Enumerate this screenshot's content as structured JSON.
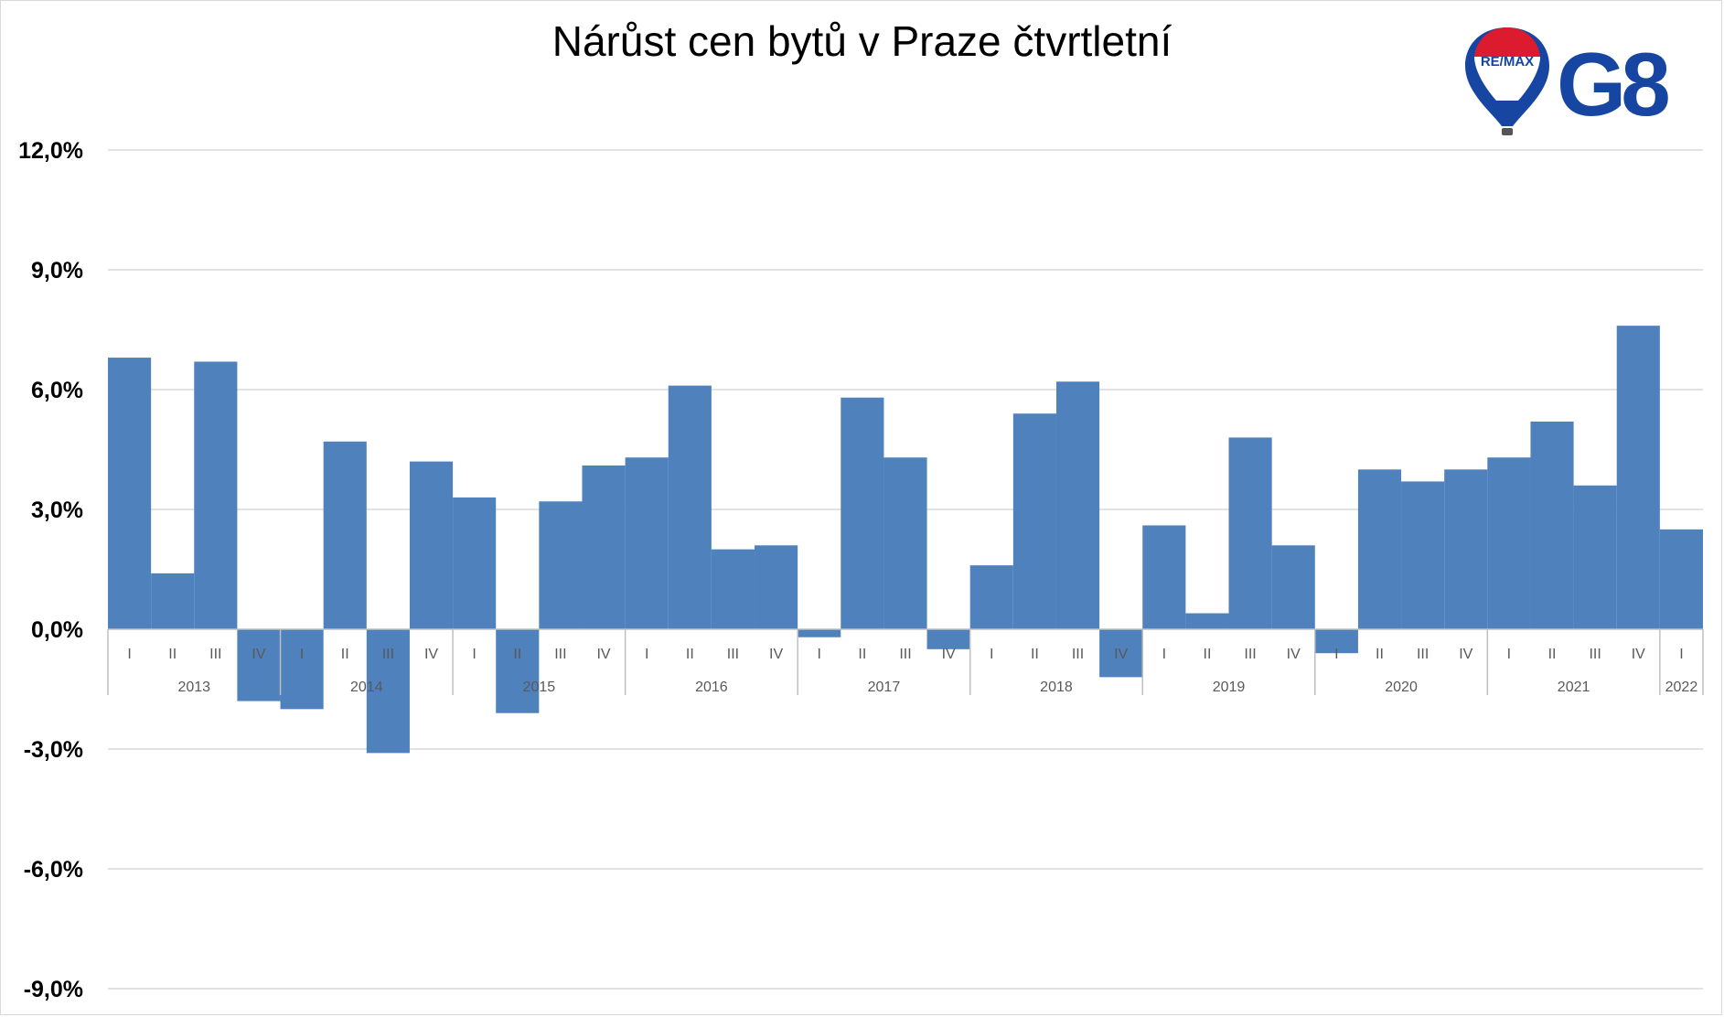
{
  "title": "Nárůst cen bytů v Praze čtvrtletní",
  "logo": {
    "brand_text": "RE/MAX",
    "office_text": "G8",
    "icon": "hot-air-balloon-icon"
  },
  "colors": {
    "bar": "#4f81bd",
    "grid": "#d9d9d9",
    "axis": "#bfbfbf",
    "logo_blue": "#1746a2",
    "logo_red": "#dc1c2e"
  },
  "chart_data": {
    "type": "bar",
    "title": "Nárůst cen bytů v Praze čtvrtletní",
    "xlabel": "",
    "ylabel": "",
    "ylim": [
      -9,
      12
    ],
    "yticks": [
      12,
      9,
      6,
      3,
      0,
      -3,
      -6,
      -9
    ],
    "ytick_labels": [
      "12,0%",
      "9,0%",
      "6,0%",
      "3,0%",
      "0,0%",
      "-3,0%",
      "-6,0%",
      "-9,0%"
    ],
    "grid": true,
    "legend": "none",
    "years": [
      {
        "label": "2013",
        "quarters": [
          "I",
          "II",
          "III",
          "IV"
        ]
      },
      {
        "label": "2014",
        "quarters": [
          "I",
          "II",
          "III",
          "IV"
        ]
      },
      {
        "label": "2015",
        "quarters": [
          "I",
          "II",
          "III",
          "IV"
        ]
      },
      {
        "label": "2016",
        "quarters": [
          "I",
          "II",
          "III",
          "IV"
        ]
      },
      {
        "label": "2017",
        "quarters": [
          "I",
          "II",
          "III",
          "IV"
        ]
      },
      {
        "label": "2018",
        "quarters": [
          "I",
          "II",
          "III",
          "IV"
        ]
      },
      {
        "label": "2019",
        "quarters": [
          "I",
          "II",
          "III",
          "IV"
        ]
      },
      {
        "label": "2020",
        "quarters": [
          "I",
          "II",
          "III",
          "IV"
        ]
      },
      {
        "label": "2021",
        "quarters": [
          "I",
          "II",
          "III",
          "IV"
        ]
      },
      {
        "label": "2022",
        "quarters": [
          "I"
        ]
      }
    ],
    "values": [
      6.8,
      1.4,
      6.7,
      -1.8,
      -2.0,
      4.7,
      -3.1,
      4.2,
      3.3,
      -2.1,
      3.2,
      4.1,
      4.3,
      6.1,
      2.0,
      2.1,
      -0.2,
      5.8,
      4.3,
      -0.5,
      1.6,
      5.4,
      6.2,
      -1.2,
      2.6,
      0.4,
      4.8,
      2.1,
      -0.6,
      4.0,
      3.7,
      4.0,
      4.3,
      5.2,
      3.6,
      7.6,
      2.5
    ]
  }
}
